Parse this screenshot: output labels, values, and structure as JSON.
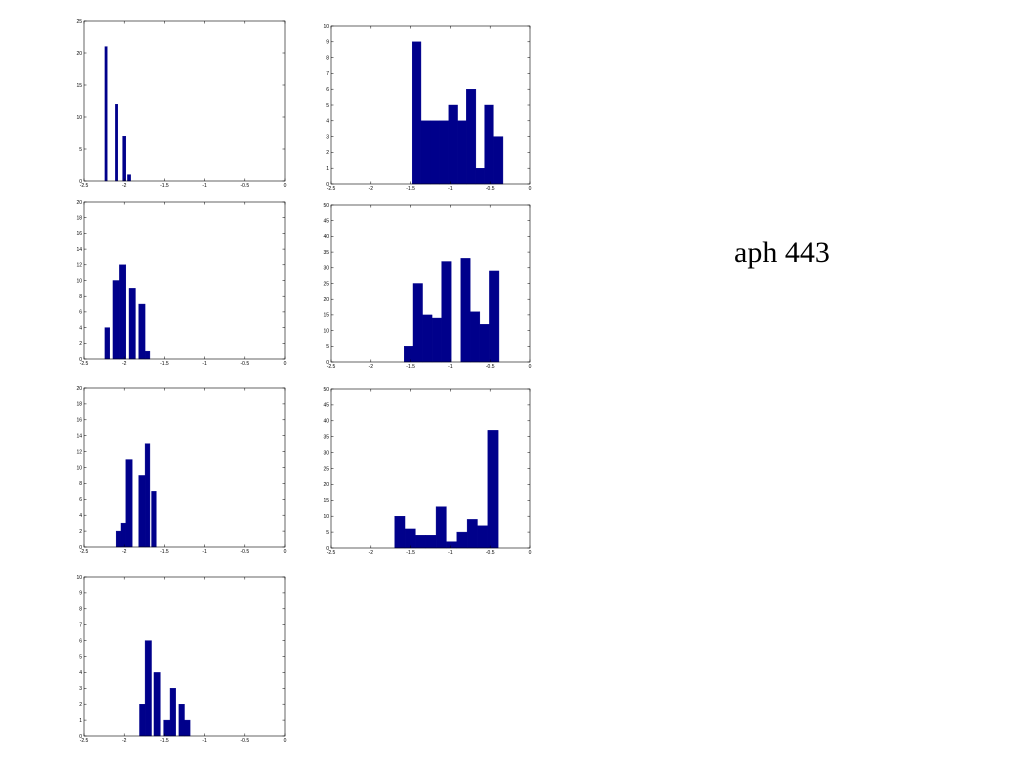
{
  "caption": "aph 443",
  "colors": {
    "bar": "#00008b",
    "axis": "#000000",
    "background": "#ffffff"
  },
  "chart_data": [
    {
      "type": "bar",
      "xlim": [
        -2.5,
        0
      ],
      "ylim": [
        0,
        25
      ],
      "x_ticks": [
        -2.5,
        -2,
        -1.5,
        -1,
        -0.5,
        0
      ],
      "y_ticks": [
        0,
        5,
        10,
        15,
        20,
        25
      ],
      "x_tick_labels": [
        "-2.5",
        "-2",
        "-1.5",
        "-1",
        "-0.5",
        "0"
      ],
      "y_tick_labels": [
        "0",
        "5",
        "10",
        "15",
        "20",
        "25"
      ],
      "bars": [
        {
          "x": [
            -2.24,
            -2.21
          ],
          "value": 21
        },
        {
          "x": [
            -2.11,
            -2.08
          ],
          "value": 12
        },
        {
          "x": [
            -2.02,
            -1.98
          ],
          "value": 7
        },
        {
          "x": [
            -1.96,
            -1.92
          ],
          "value": 1
        }
      ]
    },
    {
      "type": "bar",
      "xlim": [
        -2.5,
        0
      ],
      "ylim": [
        0,
        10
      ],
      "x_ticks": [
        -2.5,
        -2,
        -1.5,
        -1,
        -0.5,
        0
      ],
      "y_ticks": [
        0,
        1,
        2,
        3,
        4,
        5,
        6,
        7,
        8,
        9,
        10
      ],
      "x_tick_labels": [
        "-2.5",
        "-2",
        "-1.5",
        "-1",
        "-0.5",
        "0"
      ],
      "y_tick_labels": [
        "0",
        "1",
        "2",
        "3",
        "4",
        "5",
        "6",
        "7",
        "8",
        "9",
        "10"
      ],
      "bars": [
        {
          "x": [
            -1.48,
            -1.37
          ],
          "value": 9
        },
        {
          "x": [
            -1.37,
            -1.25
          ],
          "value": 4
        },
        {
          "x": [
            -1.25,
            -1.14
          ],
          "value": 4
        },
        {
          "x": [
            -1.14,
            -1.02
          ],
          "value": 4
        },
        {
          "x": [
            -1.02,
            -0.91
          ],
          "value": 5
        },
        {
          "x": [
            -0.91,
            -0.8
          ],
          "value": 4
        },
        {
          "x": [
            -0.8,
            -0.68
          ],
          "value": 6
        },
        {
          "x": [
            -0.68,
            -0.57
          ],
          "value": 1
        },
        {
          "x": [
            -0.57,
            -0.46
          ],
          "value": 5
        },
        {
          "x": [
            -0.46,
            -0.34
          ],
          "value": 3
        }
      ]
    },
    {
      "type": "bar",
      "xlim": [
        -2.5,
        0
      ],
      "ylim": [
        0,
        20
      ],
      "x_ticks": [
        -2.5,
        -2,
        -1.5,
        -1,
        -0.5,
        0
      ],
      "y_ticks": [
        0,
        2,
        4,
        6,
        8,
        10,
        12,
        14,
        16,
        18,
        20
      ],
      "x_tick_labels": [
        "-2.5",
        "-2",
        "-1.5",
        "-1",
        "-0.5",
        "0"
      ],
      "y_tick_labels": [
        "0",
        "2",
        "4",
        "6",
        "8",
        "10",
        "12",
        "14",
        "16",
        "18",
        "20"
      ],
      "bars": [
        {
          "x": [
            -2.24,
            -2.18
          ],
          "value": 4
        },
        {
          "x": [
            -2.14,
            -2.06
          ],
          "value": 10
        },
        {
          "x": [
            -2.06,
            -1.98
          ],
          "value": 12
        },
        {
          "x": [
            -1.94,
            -1.86
          ],
          "value": 9
        },
        {
          "x": [
            -1.82,
            -1.74
          ],
          "value": 7
        },
        {
          "x": [
            -1.74,
            -1.68
          ],
          "value": 1
        }
      ]
    },
    {
      "type": "bar",
      "xlim": [
        -2.5,
        0
      ],
      "ylim": [
        0,
        50
      ],
      "x_ticks": [
        -2.5,
        -2,
        -1.5,
        -1,
        -0.5,
        0
      ],
      "y_ticks": [
        0,
        5,
        10,
        15,
        20,
        25,
        30,
        35,
        40,
        45,
        50
      ],
      "x_tick_labels": [
        "-2.5",
        "-2",
        "-1.5",
        "-1",
        "-0.5",
        "0"
      ],
      "y_tick_labels": [
        "0",
        "5",
        "10",
        "15",
        "20",
        "25",
        "30",
        "35",
        "40",
        "45",
        "50"
      ],
      "bars": [
        {
          "x": [
            -1.58,
            -1.47
          ],
          "value": 5
        },
        {
          "x": [
            -1.47,
            -1.35
          ],
          "value": 25
        },
        {
          "x": [
            -1.35,
            -1.23
          ],
          "value": 15
        },
        {
          "x": [
            -1.23,
            -1.11
          ],
          "value": 14
        },
        {
          "x": [
            -1.11,
            -0.99
          ],
          "value": 32
        },
        {
          "x": [
            -0.87,
            -0.75
          ],
          "value": 33
        },
        {
          "x": [
            -0.75,
            -0.63
          ],
          "value": 16
        },
        {
          "x": [
            -0.63,
            -0.51
          ],
          "value": 12
        },
        {
          "x": [
            -0.51,
            -0.39
          ],
          "value": 29
        }
      ]
    },
    {
      "type": "bar",
      "xlim": [
        -2.5,
        0
      ],
      "ylim": [
        0,
        20
      ],
      "x_ticks": [
        -2.5,
        -2,
        -1.5,
        -1,
        -0.5,
        0
      ],
      "y_ticks": [
        0,
        2,
        4,
        6,
        8,
        10,
        12,
        14,
        16,
        18,
        20
      ],
      "x_tick_labels": [
        "-2.5",
        "-2",
        "-1.5",
        "-1",
        "-0.5",
        "0"
      ],
      "y_tick_labels": [
        "0",
        "2",
        "4",
        "6",
        "8",
        "10",
        "12",
        "14",
        "16",
        "18",
        "20"
      ],
      "bars": [
        {
          "x": [
            -2.1,
            -2.04
          ],
          "value": 2
        },
        {
          "x": [
            -2.04,
            -1.98
          ],
          "value": 3
        },
        {
          "x": [
            -1.98,
            -1.9
          ],
          "value": 11
        },
        {
          "x": [
            -1.82,
            -1.74
          ],
          "value": 9
        },
        {
          "x": [
            -1.74,
            -1.68
          ],
          "value": 13
        },
        {
          "x": [
            -1.66,
            -1.6
          ],
          "value": 7
        }
      ]
    },
    {
      "type": "bar",
      "xlim": [
        -2.5,
        0
      ],
      "ylim": [
        0,
        50
      ],
      "x_ticks": [
        -2.5,
        -2,
        -1.5,
        -1,
        -0.5,
        0
      ],
      "y_ticks": [
        0,
        5,
        10,
        15,
        20,
        25,
        30,
        35,
        40,
        45,
        50
      ],
      "x_tick_labels": [
        "-2.5",
        "-2",
        "-1.5",
        "-1",
        "-0.5",
        "0"
      ],
      "y_tick_labels": [
        "0",
        "5",
        "10",
        "15",
        "20",
        "25",
        "30",
        "35",
        "40",
        "45",
        "50"
      ],
      "bars": [
        {
          "x": [
            -1.7,
            -1.57
          ],
          "value": 10
        },
        {
          "x": [
            -1.57,
            -1.44
          ],
          "value": 6
        },
        {
          "x": [
            -1.44,
            -1.31
          ],
          "value": 4
        },
        {
          "x": [
            -1.31,
            -1.18
          ],
          "value": 4
        },
        {
          "x": [
            -1.18,
            -1.05
          ],
          "value": 13
        },
        {
          "x": [
            -1.05,
            -0.92
          ],
          "value": 2
        },
        {
          "x": [
            -0.92,
            -0.79
          ],
          "value": 5
        },
        {
          "x": [
            -0.79,
            -0.66
          ],
          "value": 9
        },
        {
          "x": [
            -0.66,
            -0.53
          ],
          "value": 7
        },
        {
          "x": [
            -0.53,
            -0.4
          ],
          "value": 37
        }
      ]
    },
    {
      "type": "bar",
      "xlim": [
        -2.5,
        0
      ],
      "ylim": [
        0,
        10
      ],
      "x_ticks": [
        -2.5,
        -2,
        -1.5,
        -1,
        -0.5,
        0
      ],
      "y_ticks": [
        0,
        1,
        2,
        3,
        4,
        5,
        6,
        7,
        8,
        9,
        10
      ],
      "x_tick_labels": [
        "-2.5",
        "-2",
        "-1.5",
        "-1",
        "-0.5",
        "0"
      ],
      "y_tick_labels": [
        "0",
        "1",
        "2",
        "3",
        "4",
        "5",
        "6",
        "7",
        "8",
        "9",
        "10"
      ],
      "bars": [
        {
          "x": [
            -1.81,
            -1.74
          ],
          "value": 2
        },
        {
          "x": [
            -1.74,
            -1.66
          ],
          "value": 6
        },
        {
          "x": [
            -1.63,
            -1.55
          ],
          "value": 4
        },
        {
          "x": [
            -1.51,
            -1.43
          ],
          "value": 1
        },
        {
          "x": [
            -1.43,
            -1.36
          ],
          "value": 3
        },
        {
          "x": [
            -1.32,
            -1.25
          ],
          "value": 2
        },
        {
          "x": [
            -1.25,
            -1.18
          ],
          "value": 1
        }
      ]
    }
  ]
}
